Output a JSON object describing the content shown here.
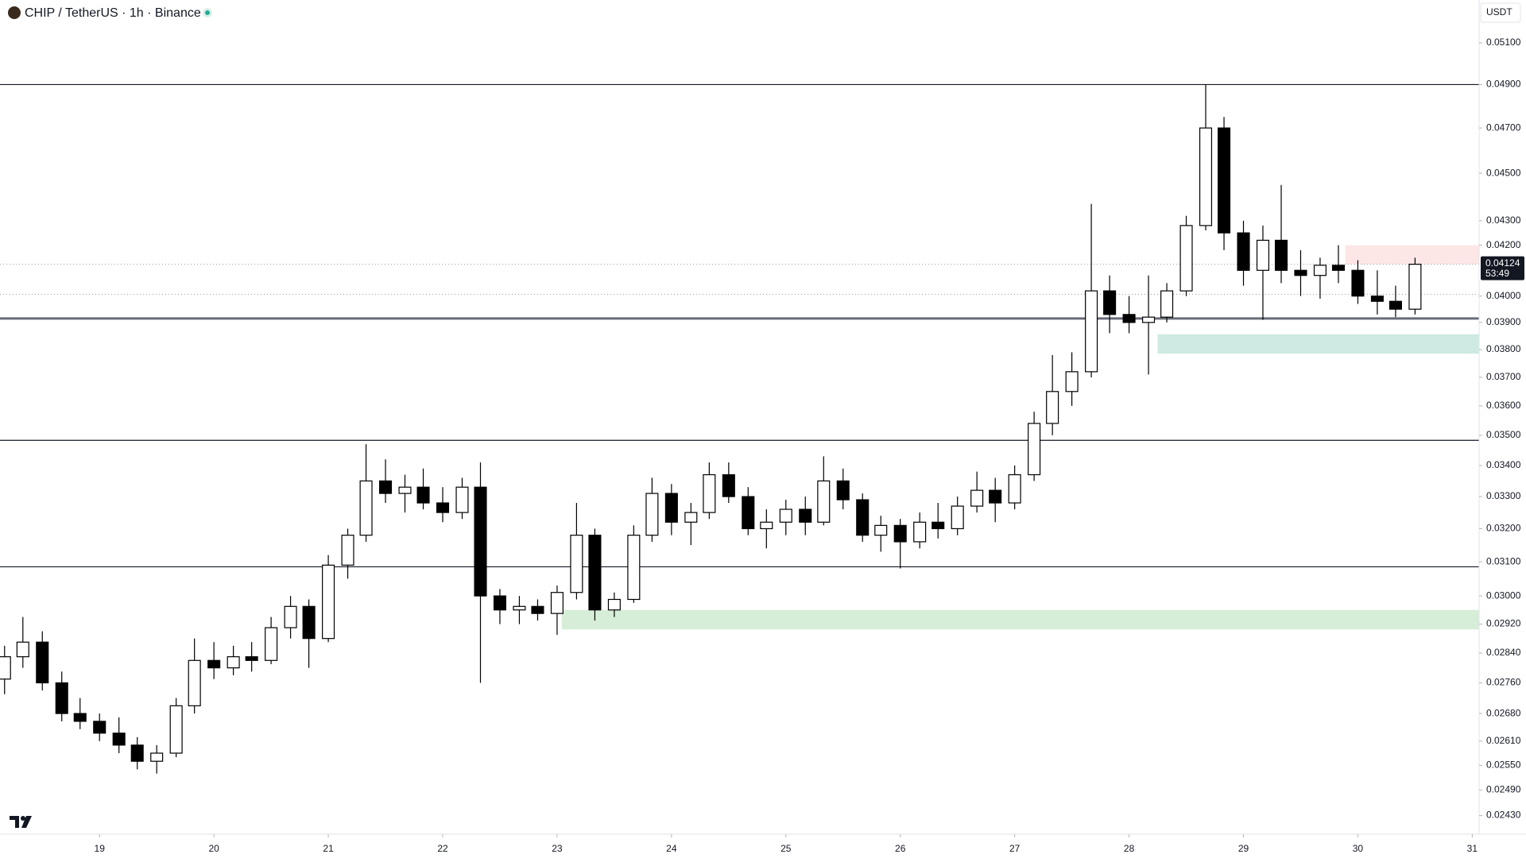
{
  "header": {
    "title": "CHIP / TetherUS · 1h · Binance",
    "currency": "USDT"
  },
  "chart_data": {
    "type": "candlestick",
    "log_scale": true,
    "grid": false,
    "up_color": "#ffffff",
    "down_color": "#000000",
    "x": [
      18.17,
      18.33,
      18.5,
      18.67,
      18.83,
      19,
      19.17,
      19.33,
      19.5,
      19.67,
      19.83,
      20,
      20.17,
      20.33,
      20.5,
      20.67,
      20.83,
      21,
      21.17,
      21.33,
      21.5,
      21.67,
      21.83,
      22,
      22.17,
      22.33,
      22.5,
      22.67,
      22.83,
      23,
      23.17,
      23.33,
      23.5,
      23.67,
      23.83,
      24,
      24.17,
      24.33,
      24.5,
      24.67,
      24.83,
      25,
      25.17,
      25.33,
      25.5,
      25.67,
      25.83,
      26,
      26.17,
      26.33,
      26.5,
      26.67,
      26.83,
      27,
      27.17,
      27.33,
      27.5,
      27.67,
      27.83,
      28,
      28.17,
      28.33,
      28.5,
      28.67,
      28.83,
      29,
      29.17,
      29.33,
      29.5,
      29.67,
      29.83,
      30,
      30.17,
      30.33,
      30.5
    ],
    "open": [
      0.0277,
      0.0283,
      0.0287,
      0.0276,
      0.0268,
      0.0266,
      0.0263,
      0.026,
      0.0256,
      0.0258,
      0.027,
      0.0282,
      0.028,
      0.0283,
      0.0282,
      0.0291,
      0.0297,
      0.0288,
      0.0309,
      0.0318,
      0.0335,
      0.0331,
      0.0333,
      0.0328,
      0.0325,
      0.0333,
      0.03,
      0.0296,
      0.0297,
      0.0295,
      0.0301,
      0.0318,
      0.0296,
      0.0299,
      0.0318,
      0.0331,
      0.0322,
      0.0325,
      0.0337,
      0.033,
      0.032,
      0.0322,
      0.0326,
      0.0322,
      0.0335,
      0.0329,
      0.0318,
      0.0321,
      0.0316,
      0.0322,
      0.032,
      0.0327,
      0.0332,
      0.0328,
      0.0337,
      0.0354,
      0.0365,
      0.0372,
      0.0402,
      0.0393,
      0.039,
      0.0392,
      0.0402,
      0.0428,
      0.047,
      0.0425,
      0.041,
      0.0422,
      0.041,
      0.0408,
      0.0412,
      0.041,
      0.04,
      0.0398,
      0.0395
    ],
    "high": [
      0.0286,
      0.0294,
      0.029,
      0.0279,
      0.0272,
      0.0268,
      0.0267,
      0.0262,
      0.026,
      0.0272,
      0.0288,
      0.0287,
      0.0286,
      0.0287,
      0.0294,
      0.03,
      0.0299,
      0.0312,
      0.032,
      0.0347,
      0.0342,
      0.0337,
      0.0339,
      0.0333,
      0.0336,
      0.0341,
      0.0302,
      0.03,
      0.0299,
      0.0303,
      0.0328,
      0.032,
      0.0301,
      0.0321,
      0.0336,
      0.0334,
      0.0328,
      0.0341,
      0.0341,
      0.0333,
      0.0326,
      0.0329,
      0.033,
      0.0343,
      0.0339,
      0.0331,
      0.0324,
      0.0323,
      0.0325,
      0.0328,
      0.033,
      0.0338,
      0.0336,
      0.034,
      0.0358,
      0.0378,
      0.0379,
      0.0437,
      0.0408,
      0.04,
      0.0408,
      0.0405,
      0.0432,
      0.049,
      0.0475,
      0.043,
      0.0428,
      0.0445,
      0.0418,
      0.0415,
      0.042,
      0.0414,
      0.041,
      0.0404,
      0.0415
    ],
    "low": [
      0.0273,
      0.028,
      0.0274,
      0.0266,
      0.0264,
      0.0261,
      0.0258,
      0.0254,
      0.0253,
      0.0257,
      0.0268,
      0.0277,
      0.0278,
      0.0279,
      0.0281,
      0.0288,
      0.028,
      0.0287,
      0.0305,
      0.0316,
      0.0328,
      0.0325,
      0.0326,
      0.0322,
      0.0323,
      0.0276,
      0.0292,
      0.0292,
      0.0293,
      0.0289,
      0.0299,
      0.0293,
      0.0294,
      0.0298,
      0.0316,
      0.0318,
      0.0315,
      0.0323,
      0.0328,
      0.0318,
      0.0314,
      0.0318,
      0.0318,
      0.0321,
      0.0326,
      0.0316,
      0.0313,
      0.0308,
      0.0314,
      0.0317,
      0.0318,
      0.0325,
      0.0322,
      0.0326,
      0.0335,
      0.035,
      0.036,
      0.037,
      0.0386,
      0.0386,
      0.0371,
      0.039,
      0.04,
      0.0426,
      0.0418,
      0.0404,
      0.0391,
      0.0405,
      0.04,
      0.0399,
      0.0405,
      0.0397,
      0.0393,
      0.0392,
      0.0393
    ],
    "close": [
      0.0283,
      0.0287,
      0.0276,
      0.0268,
      0.0266,
      0.0263,
      0.026,
      0.0256,
      0.0258,
      0.027,
      0.0282,
      0.028,
      0.0283,
      0.0282,
      0.0291,
      0.0297,
      0.0288,
      0.0309,
      0.0318,
      0.0335,
      0.0331,
      0.0333,
      0.0328,
      0.0325,
      0.0333,
      0.03,
      0.0296,
      0.0297,
      0.0295,
      0.0301,
      0.0318,
      0.0296,
      0.0299,
      0.0318,
      0.0331,
      0.0322,
      0.0325,
      0.0337,
      0.033,
      0.032,
      0.0322,
      0.0326,
      0.0322,
      0.0335,
      0.0329,
      0.0318,
      0.0321,
      0.0316,
      0.0322,
      0.032,
      0.0327,
      0.0332,
      0.0328,
      0.0337,
      0.0354,
      0.0365,
      0.0372,
      0.0402,
      0.0393,
      0.039,
      0.0392,
      0.0402,
      0.0428,
      0.047,
      0.0425,
      0.041,
      0.0422,
      0.041,
      0.0408,
      0.0412,
      0.041,
      0.04,
      0.0398,
      0.0395,
      0.04124
    ],
    "xlim": [
      18.13,
      31.06
    ],
    "xticks": [
      19,
      20,
      21,
      22,
      23,
      24,
      25,
      26,
      27,
      28,
      29,
      30,
      31
    ],
    "ylim": [
      0.02387,
      0.05314
    ],
    "yticks": [
      {
        "value": 0.051,
        "label": "0.05100"
      },
      {
        "value": 0.049,
        "label": "0.04900"
      },
      {
        "value": 0.047,
        "label": "0.04700"
      },
      {
        "value": 0.045,
        "label": "0.04500"
      },
      {
        "value": 0.043,
        "label": "0.04300"
      },
      {
        "value": 0.042,
        "label": "0.04200"
      },
      {
        "value": 0.04,
        "label": "0.04000"
      },
      {
        "value": 0.039,
        "label": "0.03900"
      },
      {
        "value": 0.038,
        "label": "0.03800"
      },
      {
        "value": 0.037,
        "label": "0.03700"
      },
      {
        "value": 0.036,
        "label": "0.03600"
      },
      {
        "value": 0.035,
        "label": "0.03500"
      },
      {
        "value": 0.034,
        "label": "0.03400"
      },
      {
        "value": 0.033,
        "label": "0.03300"
      },
      {
        "value": 0.032,
        "label": "0.03200"
      },
      {
        "value": 0.031,
        "label": "0.03100"
      },
      {
        "value": 0.03,
        "label": "0.03000"
      },
      {
        "value": 0.0292,
        "label": "0.02920"
      },
      {
        "value": 0.0284,
        "label": "0.02840"
      },
      {
        "value": 0.0276,
        "label": "0.02760"
      },
      {
        "value": 0.0268,
        "label": "0.02680"
      },
      {
        "value": 0.0261,
        "label": "0.02610"
      },
      {
        "value": 0.0255,
        "label": "0.02550"
      },
      {
        "value": 0.0249,
        "label": "0.02490"
      },
      {
        "value": 0.0243,
        "label": "0.02430"
      }
    ],
    "levels": [
      {
        "value": 0.049,
        "color": "#131722"
      },
      {
        "value": 0.03915,
        "color": "#6a6d78"
      },
      {
        "value": 0.03483,
        "color": "#131722"
      },
      {
        "value": 0.03085,
        "color": "#131722"
      }
    ],
    "dotted_levels": [
      {
        "value": 0.04124,
        "color": "#9598a1"
      },
      {
        "value": 0.04007,
        "color": "#9598a1"
      }
    ],
    "zones": [
      {
        "low": 0.02905,
        "high": 0.0296,
        "start": 23.04,
        "color": "#d6eed8"
      },
      {
        "low": 0.03785,
        "high": 0.03856,
        "start": 28.25,
        "color": "#cdeae3"
      },
      {
        "low": 0.04124,
        "high": 0.042,
        "start": 29.89,
        "color": "#fde6e6"
      }
    ],
    "last_price": 0.04124,
    "countdown": "53:49"
  }
}
